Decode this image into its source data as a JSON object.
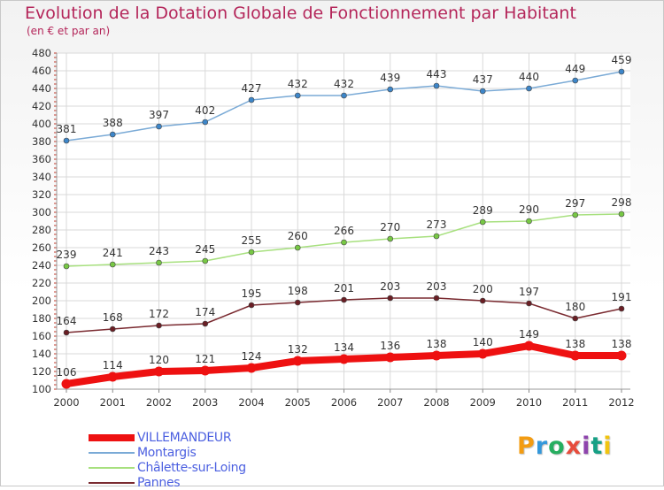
{
  "title": "Evolution de la Dotation Globale de Fonctionnement par Habitant",
  "subtitle": "(en € et par an)",
  "logo_text": "Proxiti",
  "colors": {
    "title": "#b4265a",
    "legend_text": "#4b5fe0",
    "grid": "#d9d9d9",
    "axis_tick": "#c0392b"
  },
  "chart_data": {
    "type": "line",
    "title": "Evolution de la Dotation Globale de Fonctionnement par Habitant",
    "subtitle": "(en € et par an)",
    "xlabel": "",
    "ylabel": "",
    "x": [
      "2000",
      "2001",
      "2002",
      "2003",
      "2004",
      "2005",
      "2006",
      "2007",
      "2008",
      "2009",
      "2010",
      "2011",
      "2012"
    ],
    "ylim": [
      100,
      480
    ],
    "yticks": [
      100,
      120,
      140,
      160,
      180,
      200,
      220,
      240,
      260,
      280,
      300,
      320,
      340,
      360,
      380,
      400,
      420,
      440,
      460,
      480
    ],
    "grid": true,
    "legend_position": "bottom-left",
    "series": [
      {
        "name": "VILLEMANDEUR",
        "color": "#ee1111",
        "dot": "#ee1111",
        "width": 8,
        "values": [
          106,
          114,
          120,
          121,
          124,
          132,
          134,
          136,
          138,
          140,
          149,
          138,
          138
        ]
      },
      {
        "name": "Montargis",
        "color": "#7aaad6",
        "dot": "#3d86c9",
        "width": 1.5,
        "values": [
          381,
          388,
          397,
          402,
          427,
          432,
          432,
          439,
          443,
          437,
          440,
          449,
          459
        ]
      },
      {
        "name": "Châlette-sur-Loing",
        "color": "#a7e07e",
        "dot": "#77c844",
        "width": 1.5,
        "values": [
          239,
          241,
          243,
          245,
          255,
          260,
          266,
          270,
          273,
          289,
          290,
          297,
          298
        ]
      },
      {
        "name": "Pannes",
        "color": "#7a2a30",
        "dot": "#6a1e24",
        "width": 1.5,
        "values": [
          164,
          168,
          172,
          174,
          195,
          198,
          201,
          203,
          203,
          200,
          197,
          180,
          191
        ]
      }
    ]
  }
}
